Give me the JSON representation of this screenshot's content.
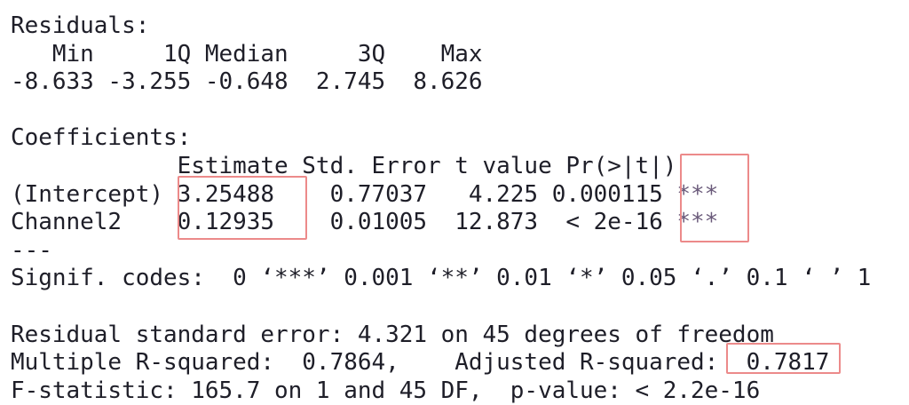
{
  "residuals": {
    "title": "Residuals:",
    "header": "   Min     1Q Median     3Q    Max ",
    "values": "-8.633 -3.255 -0.648  2.745  8.626 "
  },
  "coefficients": {
    "title": "Coefficients:",
    "header": "            Estimate Std. Error t value Pr(>|t|)    ",
    "rows": [
      {
        "line": "(Intercept) 3.25488    0.77037   4.225 0.000115 ",
        "stars": "***"
      },
      {
        "line": "Channel2    0.12935    0.01005  12.873  < 2e-16 ",
        "stars": "***"
      }
    ],
    "separator": "---",
    "signif": "Signif. codes:  0 ‘***’ 0.001 ‘**’ 0.01 ‘*’ 0.05 ‘.’ 0.1 ‘ ’ 1"
  },
  "summary": {
    "residual_se": "Residual standard error: 4.321 on 45 degrees of freedom",
    "r_squared": "Multiple R-squared:  0.7864,    Adjusted R-squared:  0.7817 ",
    "f_statistic": "F-statistic: 165.7 on 1 and 45 DF,  p-value: < 2.2e-16"
  },
  "highlight_color": "#ec8a8a"
}
